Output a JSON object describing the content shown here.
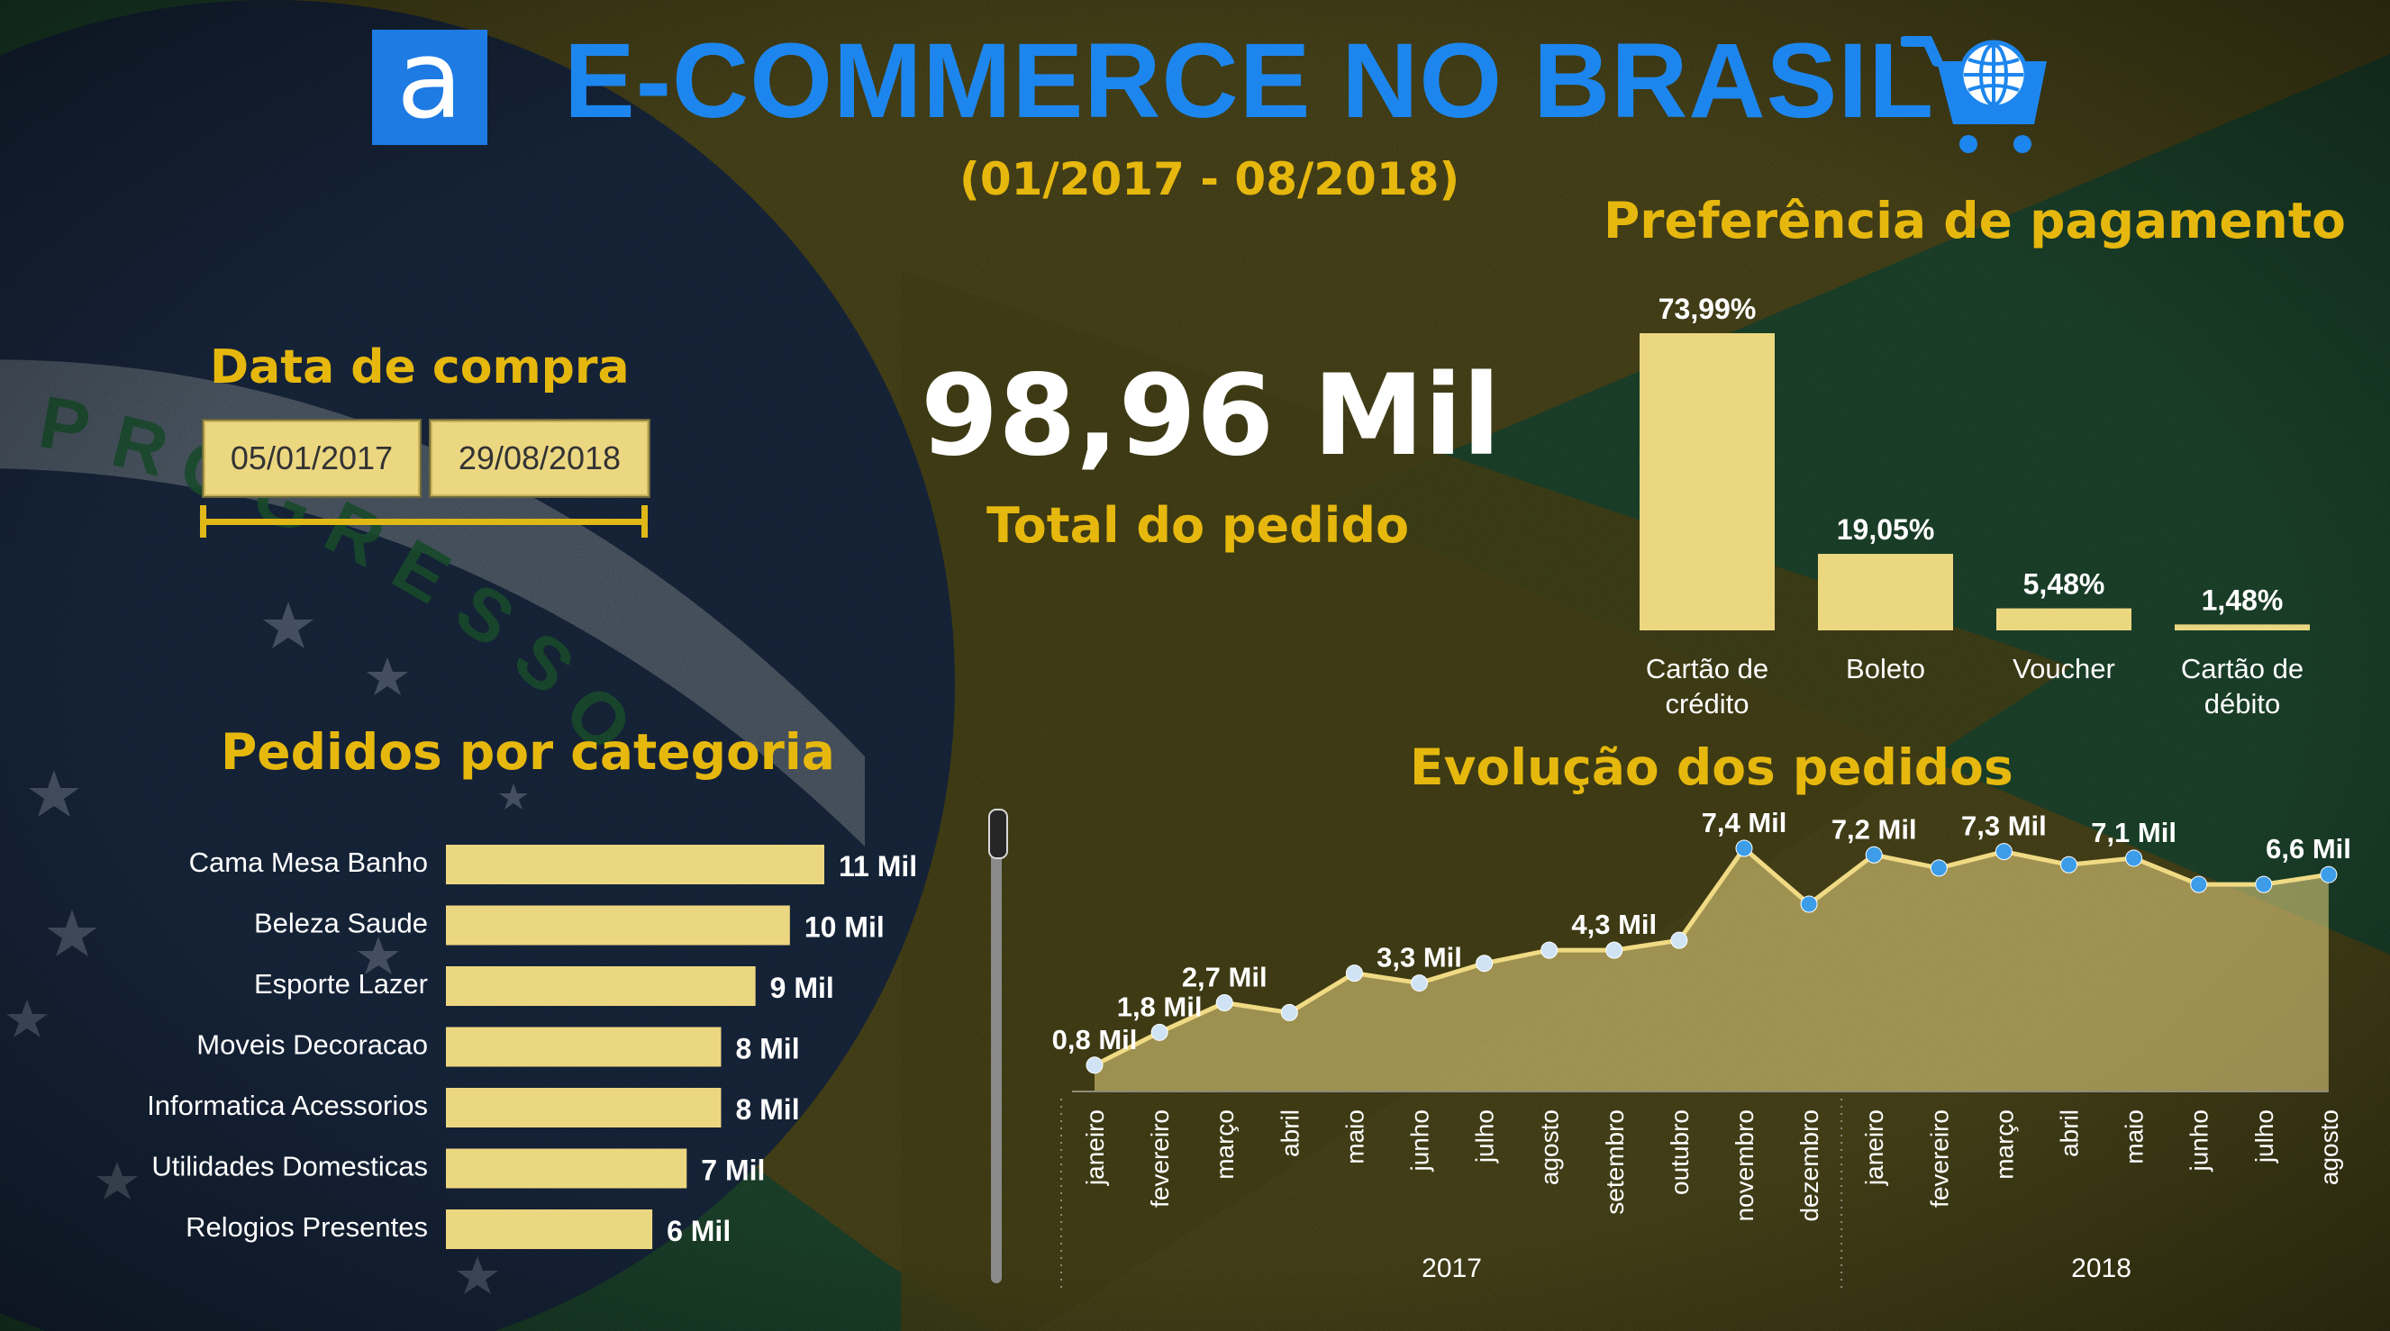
{
  "header": {
    "logo_letter": "a",
    "title": "E-COMMERCE NO BRASIL",
    "subtitle": "(01/2017 - 08/2018)",
    "cart_icon": "shopping-cart-globe-icon"
  },
  "date_filter": {
    "title": "Data de compra",
    "start": "05/01/2017",
    "end": "29/08/2018"
  },
  "kpi": {
    "value": "98,96 Mil",
    "label": "Total do pedido"
  },
  "colors": {
    "accent_gold": "#e6b80e",
    "bar_fill": "#ecd781",
    "title_blue": "#1d86ee",
    "marker_blue": "#3d9de8"
  },
  "chart_data": [
    {
      "id": "pagamento",
      "type": "bar",
      "title": "Preferência de pagamento",
      "categories": [
        "Cartão de crédito",
        "Boleto",
        "Voucher",
        "Cartão de débito"
      ],
      "values": [
        73.99,
        19.05,
        5.48,
        1.48
      ],
      "labels": [
        "73,99%",
        "19,05%",
        "5,48%",
        "1,48%"
      ],
      "ylim": [
        0,
        73.99
      ],
      "grid": false
    },
    {
      "id": "categorias",
      "type": "bar",
      "orientation": "horizontal",
      "title": "Pedidos por categoria",
      "categories": [
        "Cama Mesa Banho",
        "Beleza Saude",
        "Esporte Lazer",
        "Moveis Decoracao",
        "Informatica Acessorios",
        "Utilidades Domesticas",
        "Relogios Presentes"
      ],
      "values": [
        11,
        10,
        9,
        8,
        8,
        7,
        6
      ],
      "labels": [
        "11 Mil",
        "10 Mil",
        "9 Mil",
        "8 Mil",
        "8 Mil",
        "7 Mil",
        "6 Mil"
      ],
      "grid": false
    },
    {
      "id": "evolucao",
      "type": "area",
      "title": "Evolução dos pedidos",
      "x": [
        "janeiro",
        "fevereiro",
        "março",
        "abril",
        "maio",
        "junho",
        "julho",
        "agosto",
        "setembro",
        "outubro",
        "novembro",
        "dezembro",
        "janeiro",
        "fevereiro",
        "março",
        "abril",
        "maio",
        "junho",
        "julho",
        "agosto"
      ],
      "groups": [
        {
          "label": "2017",
          "count": 12
        },
        {
          "label": "2018",
          "count": 8
        }
      ],
      "values": [
        0.8,
        1.8,
        2.7,
        2.4,
        3.6,
        3.3,
        3.9,
        4.3,
        4.3,
        4.6,
        7.4,
        5.7,
        7.2,
        6.8,
        7.3,
        6.9,
        7.1,
        6.3,
        6.3,
        6.6
      ],
      "point_labels": [
        {
          "index": 0,
          "text": "0,8 Mil"
        },
        {
          "index": 1,
          "text": "1,8 Mil"
        },
        {
          "index": 2,
          "text": "2,7 Mil"
        },
        {
          "index": 5,
          "text": "3,3 Mil"
        },
        {
          "index": 8,
          "text": "4,3 Mil"
        },
        {
          "index": 10,
          "text": "7,4 Mil"
        },
        {
          "index": 12,
          "text": "7,2 Mil"
        },
        {
          "index": 14,
          "text": "7,3 Mil"
        },
        {
          "index": 16,
          "text": "7,1 Mil"
        },
        {
          "index": 19,
          "text": "6,6 Mil"
        }
      ],
      "grid": false
    }
  ]
}
